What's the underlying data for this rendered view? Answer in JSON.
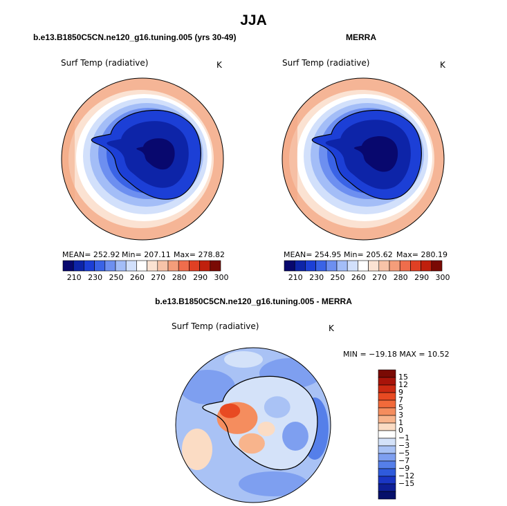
{
  "title": "JJA",
  "panels": [
    {
      "case": "b.e13.B1850C5CN.ne120_g16.tuning.005 (yrs 30-49)",
      "variable": "Surf Temp (radiative)",
      "units": "K",
      "mean_label": "MEAN= 252.92",
      "min_label": "Min= 207.11",
      "max_label": "Max= 278.82"
    },
    {
      "case": "MERRA",
      "variable": "Surf Temp (radiative)",
      "units": "K",
      "mean_label": "MEAN= 254.95",
      "min_label": "Min= 205.62",
      "max_label": "Max= 280.19"
    }
  ],
  "abs_colorbar": {
    "ticks": [
      "210",
      "230",
      "250",
      "260",
      "270",
      "280",
      "290",
      "300"
    ],
    "colors": [
      "#08086e",
      "#0d24a8",
      "#1c3fd6",
      "#3a63e6",
      "#6d8ff0",
      "#a3bdf7",
      "#d2e0fb",
      "#ffffff",
      "#fbe2d2",
      "#f7c3a8",
      "#f49d7a",
      "#ef6d4c",
      "#e04024",
      "#c0200d",
      "#7a0a04"
    ]
  },
  "diff_panel": {
    "case": "b.e13.B1850C5CN.ne120_g16.tuning.005 - MERRA",
    "variable": "Surf Temp (radiative)",
    "units": "K",
    "minmax_label": "MIN = −19.18 MAX =  10.52"
  },
  "diff_colorbar": {
    "ticks": [
      "15",
      "12",
      "9",
      "7",
      "5",
      "3",
      "1",
      "0",
      "−1",
      "−3",
      "−5",
      "−7",
      "−9",
      "−12",
      "−15"
    ],
    "colors": [
      "#7a0a04",
      "#a8140a",
      "#cc2a12",
      "#e84a22",
      "#f26a3a",
      "#f58d5e",
      "#f8b48c",
      "#fbdcc4",
      "#ffffff",
      "#d4e2f9",
      "#a9c2f5",
      "#7e9ff0",
      "#557fe9",
      "#2f5bdc",
      "#1a36c4",
      "#0e1f96",
      "#06106a"
    ]
  }
}
